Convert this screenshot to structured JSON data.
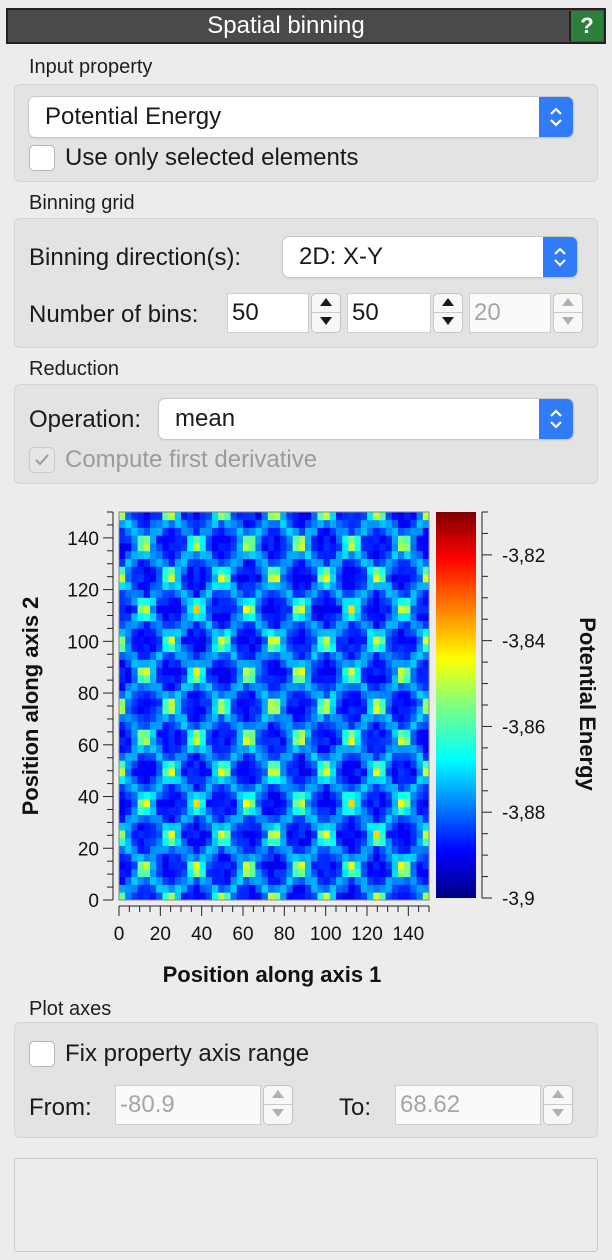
{
  "panel": {
    "title": "Spatial binning",
    "help_label": "?"
  },
  "input_property": {
    "section_label": "Input property",
    "selected": "Potential Energy",
    "use_selected_label": "Use only selected elements",
    "use_selected_checked": false
  },
  "binning_grid": {
    "section_label": "Binning grid",
    "direction_label": "Binning direction(s):",
    "direction_value": "2D: X-Y",
    "bins_label": "Number of bins:",
    "bins_x": "50",
    "bins_y": "50",
    "bins_z": "20"
  },
  "reduction": {
    "section_label": "Reduction",
    "operation_label": "Operation:",
    "operation_value": "mean",
    "derivative_label": "Compute first derivative",
    "derivative_checked": true
  },
  "chart_data": {
    "type": "heatmap",
    "xlabel": "Position along axis 1",
    "ylabel": "Position along axis 2",
    "colorbar_label": "Potential Energy",
    "xlim": [
      0,
      150
    ],
    "ylim": [
      0,
      150
    ],
    "x_ticks": [
      "0",
      "20",
      "40",
      "60",
      "80",
      "100",
      "120",
      "140"
    ],
    "y_ticks": [
      "0",
      "20",
      "40",
      "60",
      "80",
      "100",
      "120",
      "140"
    ],
    "color_range": [
      -3.9,
      -3.81
    ],
    "colorbar_ticks": [
      "-3,82",
      "-3,84",
      "-3,86",
      "-3,88",
      "-3,9"
    ],
    "grid_bins": [
      50,
      50
    ],
    "colormap": "jet"
  },
  "plot_axes": {
    "section_label": "Plot axes",
    "fix_range_label": "Fix property axis range",
    "fix_range_checked": false,
    "from_label": "From:",
    "from_value": "-80.9",
    "to_label": "To:",
    "to_value": "68.62"
  },
  "colors": {
    "accent": "#2f7cf6",
    "help_bg": "#2f7f3c",
    "title_bg": "#4a4a4a"
  }
}
